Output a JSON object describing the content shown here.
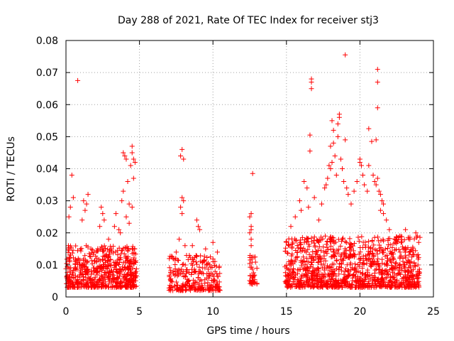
{
  "chart_data": {
    "type": "scatter",
    "title": "Day 288 of 2021, Rate Of TEC Index for receiver stj3",
    "xlabel": "GPS time / hours",
    "ylabel": "ROTI / TECUs",
    "xlim": [
      0,
      25
    ],
    "ylim": [
      0,
      0.08
    ],
    "grid": true,
    "marker": "plus",
    "series_color": "#ff0000",
    "x_ticks": [
      0,
      5,
      10,
      15,
      20,
      25
    ],
    "x_tick_labels": [
      "0",
      "5",
      "10",
      "15",
      "20",
      "25"
    ],
    "y_ticks": [
      0,
      0.01,
      0.02,
      0.03,
      0.04,
      0.05,
      0.06,
      0.07,
      0.08
    ],
    "y_tick_labels": [
      "0",
      "0.01",
      "0.02",
      "0.03",
      "0.04",
      "0.05",
      "0.06",
      "0.07",
      "0.08"
    ],
    "density_bands": [
      {
        "x": [
          0.0,
          4.8
        ],
        "base": [
          0.003,
          0.016
        ],
        "n": 600
      },
      {
        "x": [
          7.0,
          10.5
        ],
        "base": [
          0.002,
          0.013
        ],
        "n": 260
      },
      {
        "x": [
          12.5,
          13.0
        ],
        "base": [
          0.004,
          0.013
        ],
        "n": 40
      },
      {
        "x": [
          14.9,
          24.1
        ],
        "base": [
          0.003,
          0.019
        ],
        "n": 1100
      }
    ],
    "points": [
      [
        0.8,
        0.0675
      ],
      [
        0.4,
        0.038
      ],
      [
        0.2,
        0.025
      ],
      [
        0.3,
        0.028
      ],
      [
        0.5,
        0.031
      ],
      [
        1.2,
        0.03
      ],
      [
        1.4,
        0.029
      ],
      [
        1.5,
        0.032
      ],
      [
        1.3,
        0.027
      ],
      [
        1.1,
        0.024
      ],
      [
        2.4,
        0.028
      ],
      [
        2.5,
        0.026
      ],
      [
        2.3,
        0.022
      ],
      [
        2.6,
        0.024
      ],
      [
        2.9,
        0.018
      ],
      [
        3.3,
        0.022
      ],
      [
        3.4,
        0.026
      ],
      [
        3.6,
        0.021
      ],
      [
        3.8,
        0.03
      ],
      [
        3.9,
        0.033
      ],
      [
        4.0,
        0.044
      ],
      [
        3.9,
        0.045
      ],
      [
        4.1,
        0.043
      ],
      [
        4.5,
        0.047
      ],
      [
        4.5,
        0.045
      ],
      [
        4.6,
        0.043
      ],
      [
        4.7,
        0.042
      ],
      [
        4.4,
        0.041
      ],
      [
        4.2,
        0.036
      ],
      [
        4.6,
        0.037
      ],
      [
        4.3,
        0.029
      ],
      [
        4.5,
        0.028
      ],
      [
        4.1,
        0.025
      ],
      [
        4.3,
        0.023
      ],
      [
        3.7,
        0.02
      ],
      [
        7.9,
        0.046
      ],
      [
        7.8,
        0.044
      ],
      [
        8.0,
        0.043
      ],
      [
        7.9,
        0.031
      ],
      [
        8.0,
        0.03
      ],
      [
        7.8,
        0.028
      ],
      [
        7.9,
        0.026
      ],
      [
        7.7,
        0.018
      ],
      [
        8.1,
        0.016
      ],
      [
        8.6,
        0.016
      ],
      [
        8.9,
        0.024
      ],
      [
        9.0,
        0.022
      ],
      [
        9.1,
        0.021
      ],
      [
        9.5,
        0.015
      ],
      [
        10.0,
        0.017
      ],
      [
        10.3,
        0.014
      ],
      [
        7.5,
        0.014
      ],
      [
        12.7,
        0.0385
      ],
      [
        12.6,
        0.026
      ],
      [
        12.5,
        0.025
      ],
      [
        12.6,
        0.022
      ],
      [
        12.6,
        0.021
      ],
      [
        12.5,
        0.02
      ],
      [
        12.6,
        0.018
      ],
      [
        12.6,
        0.016
      ],
      [
        15.3,
        0.022
      ],
      [
        15.6,
        0.025
      ],
      [
        15.9,
        0.03
      ],
      [
        16.0,
        0.027
      ],
      [
        16.2,
        0.036
      ],
      [
        16.4,
        0.034
      ],
      [
        16.5,
        0.028
      ],
      [
        16.7,
        0.068
      ],
      [
        16.7,
        0.067
      ],
      [
        16.7,
        0.065
      ],
      [
        16.6,
        0.0505
      ],
      [
        16.6,
        0.0455
      ],
      [
        16.9,
        0.031
      ],
      [
        17.2,
        0.024
      ],
      [
        17.4,
        0.029
      ],
      [
        17.6,
        0.034
      ],
      [
        17.7,
        0.035
      ],
      [
        17.8,
        0.037
      ],
      [
        17.9,
        0.041
      ],
      [
        18.0,
        0.047
      ],
      [
        18.1,
        0.055
      ],
      [
        18.2,
        0.052
      ],
      [
        18.2,
        0.048
      ],
      [
        18.3,
        0.044
      ],
      [
        18.1,
        0.042
      ],
      [
        18.0,
        0.04
      ],
      [
        18.4,
        0.038
      ],
      [
        18.5,
        0.05
      ],
      [
        18.6,
        0.057
      ],
      [
        18.6,
        0.056
      ],
      [
        18.5,
        0.054
      ],
      [
        18.7,
        0.043
      ],
      [
        18.8,
        0.04
      ],
      [
        18.9,
        0.036
      ],
      [
        19.0,
        0.0755
      ],
      [
        19.0,
        0.049
      ],
      [
        19.1,
        0.034
      ],
      [
        19.2,
        0.032
      ],
      [
        19.4,
        0.029
      ],
      [
        19.6,
        0.033
      ],
      [
        19.8,
        0.036
      ],
      [
        20.0,
        0.043
      ],
      [
        20.0,
        0.042
      ],
      [
        20.1,
        0.041
      ],
      [
        20.2,
        0.038
      ],
      [
        20.3,
        0.035
      ],
      [
        20.5,
        0.033
      ],
      [
        20.6,
        0.0525
      ],
      [
        20.6,
        0.041
      ],
      [
        20.8,
        0.0485
      ],
      [
        20.9,
        0.038
      ],
      [
        21.0,
        0.036
      ],
      [
        21.1,
        0.035
      ],
      [
        21.2,
        0.071
      ],
      [
        21.2,
        0.067
      ],
      [
        21.2,
        0.059
      ],
      [
        21.1,
        0.049
      ],
      [
        21.2,
        0.037
      ],
      [
        21.3,
        0.033
      ],
      [
        21.4,
        0.032
      ],
      [
        21.5,
        0.03
      ],
      [
        21.6,
        0.029
      ],
      [
        21.4,
        0.027
      ],
      [
        21.6,
        0.026
      ],
      [
        21.8,
        0.024
      ],
      [
        22.0,
        0.021
      ],
      [
        22.4,
        0.017
      ],
      [
        22.7,
        0.019
      ],
      [
        23.1,
        0.021
      ],
      [
        23.4,
        0.018
      ],
      [
        23.8,
        0.02
      ],
      [
        23.9,
        0.019
      ],
      [
        24.0,
        0.017
      ]
    ]
  }
}
